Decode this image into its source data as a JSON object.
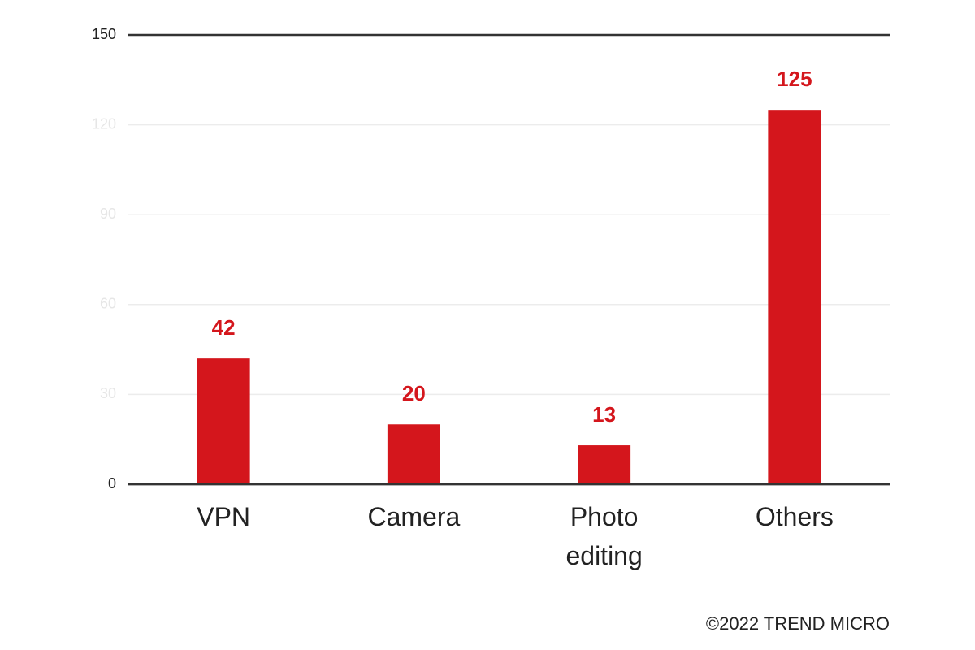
{
  "chart_data": {
    "type": "bar",
    "categories": [
      "VPN",
      "Camera",
      "Photo editing",
      "Others"
    ],
    "values": [
      42,
      20,
      13,
      125
    ],
    "color": "#d4161c",
    "ylim": [
      0,
      150
    ],
    "yticks": [
      0,
      30,
      60,
      90,
      120,
      150
    ],
    "grid": true,
    "source": "©2022 TREND MICRO"
  }
}
